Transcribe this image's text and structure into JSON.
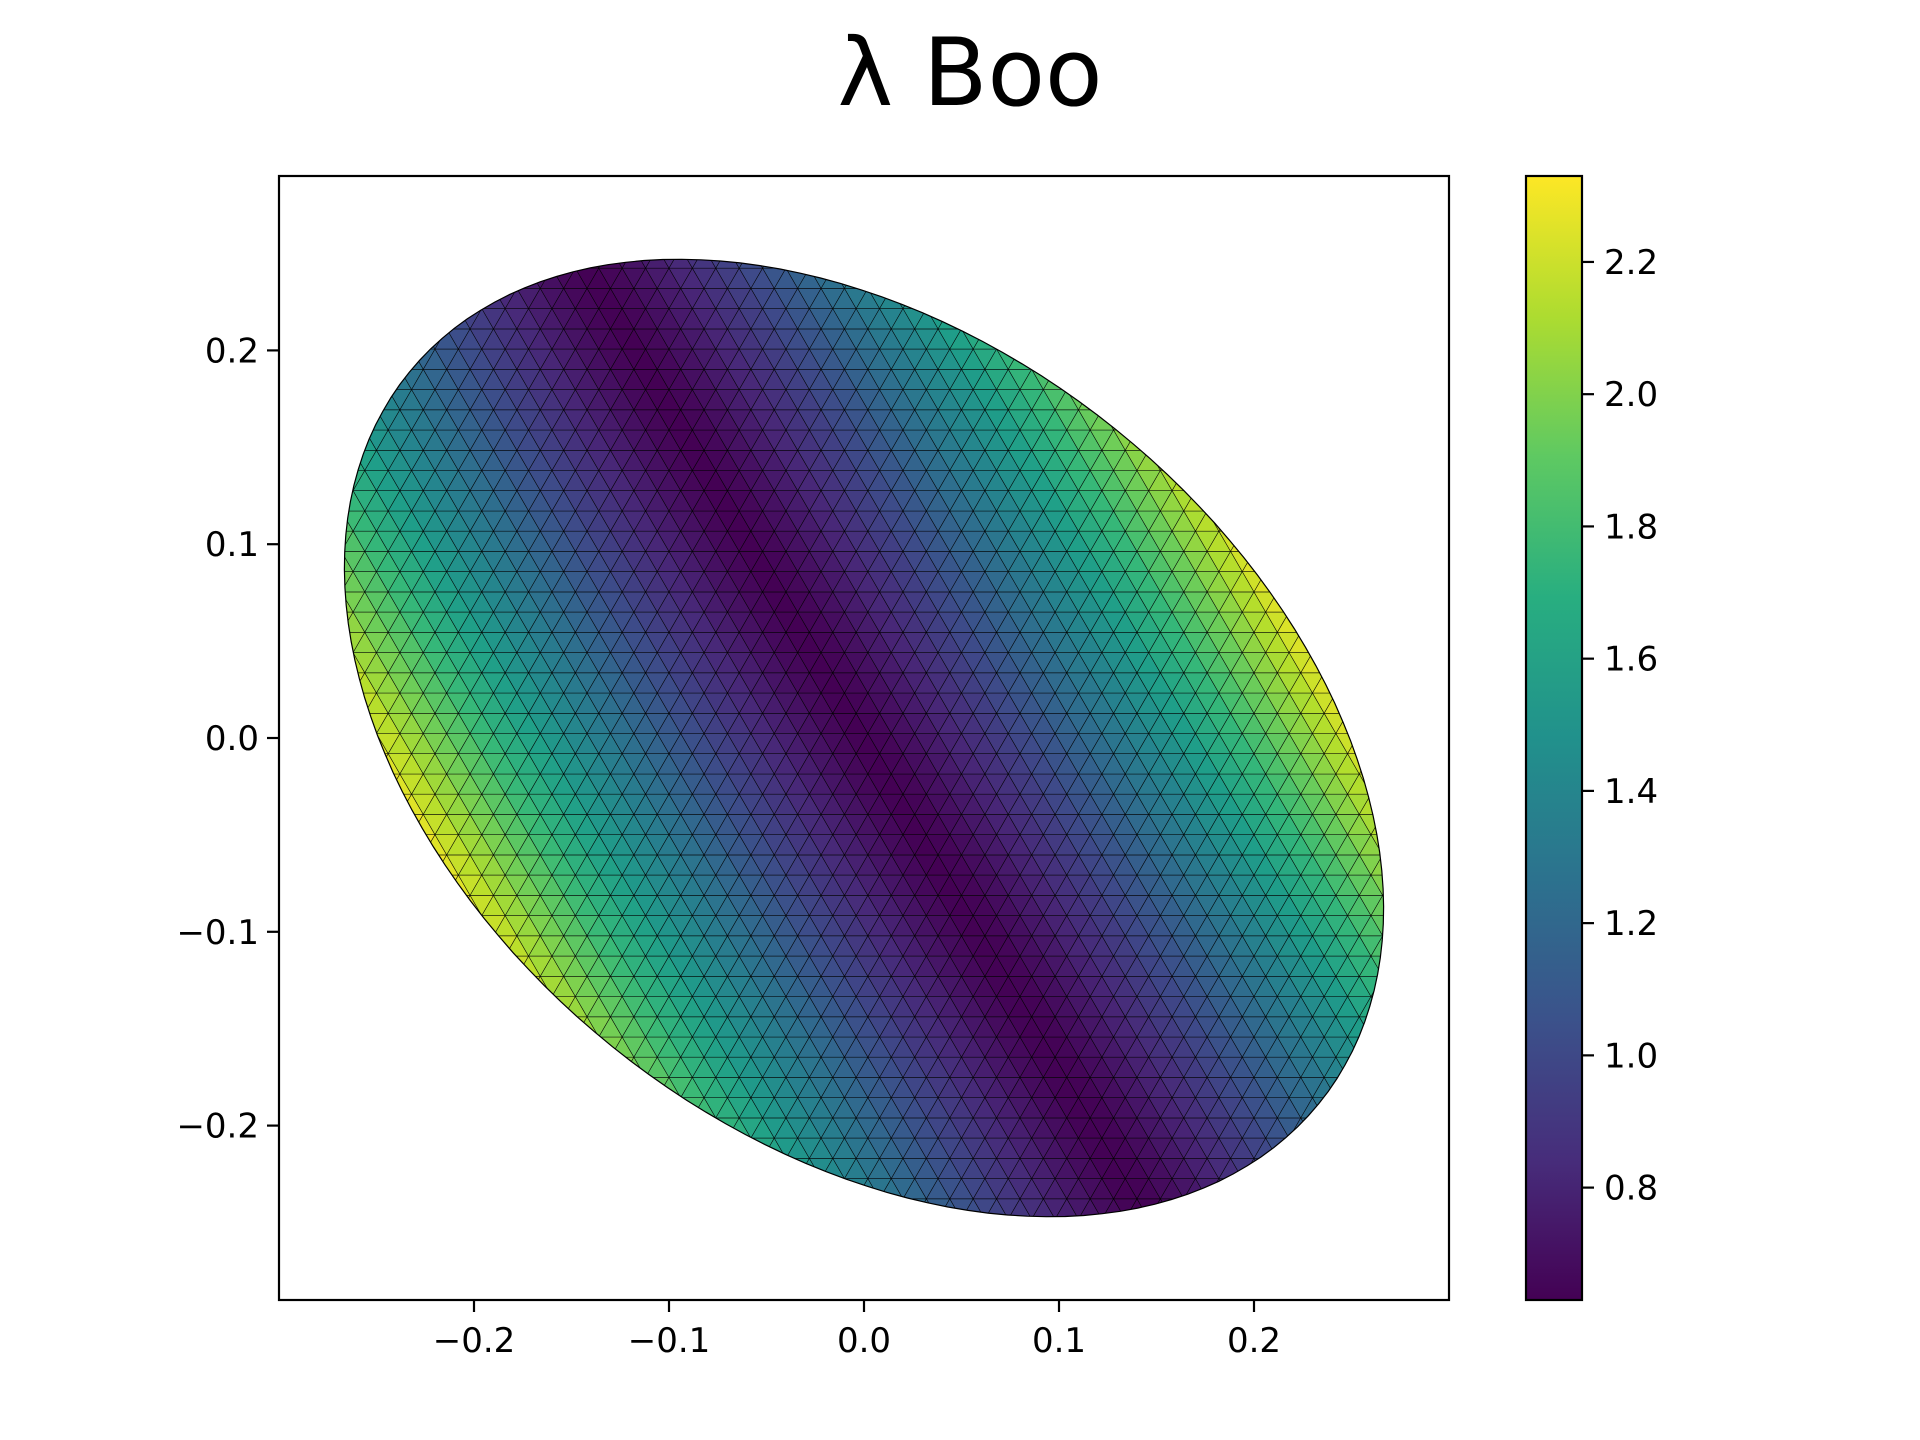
{
  "chart_data": {
    "type": "heatmap",
    "title": "λ Boo",
    "xlabel": "",
    "ylabel": "",
    "xlim": [
      -0.3,
      0.3
    ],
    "ylim": [
      -0.29,
      0.29
    ],
    "x_ticks": [
      -0.2,
      -0.1,
      0.0,
      0.1,
      0.2
    ],
    "x_tick_labels": [
      "−0.2",
      "−0.1",
      "0.0",
      "0.1",
      "0.2"
    ],
    "y_ticks": [
      0.2,
      0.1,
      0.0,
      -0.1,
      -0.2
    ],
    "y_tick_labels": [
      "0.2",
      "0.1",
      "0.0",
      "−0.1",
      "−0.2"
    ],
    "grid": false,
    "colormap": "viridis",
    "colorbar": {
      "range": [
        0.63,
        2.33
      ],
      "ticks": [
        2.2,
        2.0,
        1.8,
        1.6,
        1.4,
        1.2,
        1.0,
        0.8
      ],
      "tick_labels": [
        "2.2",
        "2.0",
        "1.8",
        "1.6",
        "1.4",
        "1.2",
        "1.0",
        "0.8"
      ]
    },
    "surface": {
      "description": "Triangulated oblate stellar surface, temperature-like intensity mapped with viridis",
      "semi_axis_major": 0.3,
      "semi_axis_minor": 0.205,
      "tilt_degrees": -39,
      "center": [
        0.0,
        0.0
      ],
      "min_value": 0.63,
      "max_value": 2.33
    }
  },
  "colors": {
    "background": "#ffffff",
    "axes": "#000000",
    "mesh_line": "#000000"
  }
}
